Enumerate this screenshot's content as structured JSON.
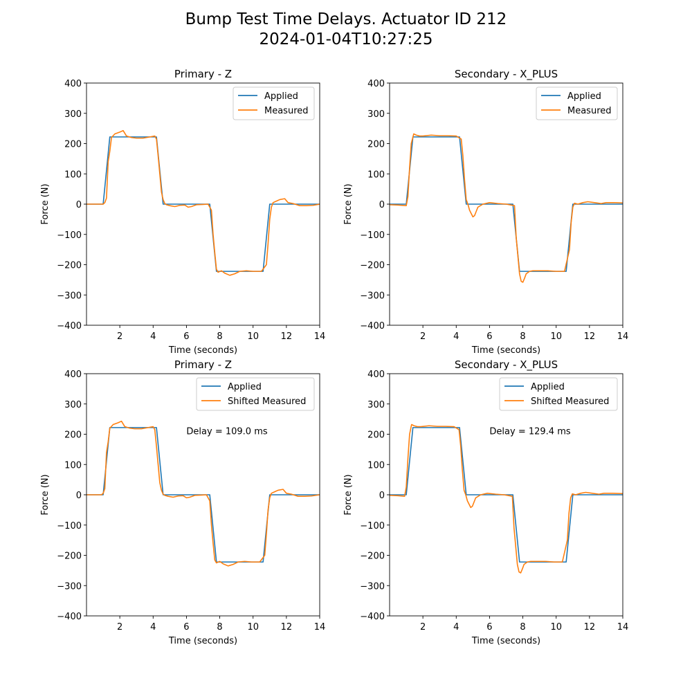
{
  "figure": {
    "title_line1": "Bump Test Time Delays. Actuator ID 212",
    "title_line2": "2024-01-04T10:27:25"
  },
  "colors": {
    "applied": "#1f77b4",
    "measured": "#ff7f0e"
  },
  "chart_data": [
    {
      "type": "line",
      "title": "Primary - Z",
      "xlabel": "Time (seconds)",
      "ylabel": "Force (N)",
      "xlim": [
        0,
        14
      ],
      "ylim": [
        -400,
        400
      ],
      "xticks": [
        2,
        4,
        6,
        8,
        10,
        12,
        14
      ],
      "yticks": [
        -400,
        -300,
        -200,
        -100,
        0,
        100,
        200,
        300,
        400
      ],
      "legend": "top-right",
      "annotation": "",
      "series": [
        {
          "name": "Applied",
          "x": [
            0,
            1.0,
            1.4,
            4.2,
            4.6,
            7.4,
            7.8,
            10.6,
            11.0,
            14
          ],
          "y": [
            0,
            0,
            222,
            222,
            0,
            0,
            -222,
            -222,
            0,
            0
          ]
        },
        {
          "name": "Measured",
          "x": [
            0,
            0.5,
            1.0,
            1.1,
            1.2,
            1.3,
            1.4,
            1.5,
            1.7,
            2.0,
            2.2,
            2.4,
            2.7,
            3.0,
            3.4,
            3.8,
            4.1,
            4.2,
            4.3,
            4.4,
            4.5,
            4.6,
            4.7,
            4.8,
            5.0,
            5.3,
            5.6,
            5.9,
            6.1,
            6.3,
            6.6,
            7.0,
            7.3,
            7.5,
            7.6,
            7.7,
            7.8,
            7.9,
            8.1,
            8.3,
            8.6,
            8.9,
            9.2,
            9.6,
            10.0,
            10.5,
            10.8,
            10.9,
            11.0,
            11.1,
            11.2,
            11.4,
            11.6,
            11.9,
            12.1,
            12.4,
            12.8,
            13.2,
            13.6,
            14
          ],
          "y": [
            0,
            0,
            0,
            5,
            20,
            140,
            175,
            220,
            232,
            238,
            243,
            225,
            220,
            218,
            218,
            222,
            225,
            215,
            160,
            100,
            40,
            15,
            2,
            -2,
            -5,
            -8,
            -4,
            -3,
            -10,
            -8,
            -2,
            -1,
            0,
            -20,
            -100,
            -160,
            -215,
            -225,
            -220,
            -228,
            -235,
            -230,
            -222,
            -220,
            -222,
            -222,
            -200,
            -130,
            -50,
            -10,
            5,
            10,
            15,
            18,
            5,
            2,
            -5,
            -5,
            -4,
            0
          ]
        }
      ]
    },
    {
      "type": "line",
      "title": "Secondary - X_PLUS",
      "xlabel": "Time (seconds)",
      "ylabel": "Force (N)",
      "xlim": [
        0,
        14
      ],
      "ylim": [
        -400,
        400
      ],
      "xticks": [
        2,
        4,
        6,
        8,
        10,
        12,
        14
      ],
      "yticks": [
        -400,
        -300,
        -200,
        -100,
        0,
        100,
        200,
        300,
        400
      ],
      "legend": "top-right",
      "annotation": "",
      "series": [
        {
          "name": "Applied",
          "x": [
            0,
            1.0,
            1.4,
            4.2,
            4.6,
            7.4,
            7.8,
            10.6,
            11.0,
            14
          ],
          "y": [
            0,
            0,
            222,
            222,
            0,
            0,
            -222,
            -222,
            0,
            0
          ]
        },
        {
          "name": "Measured",
          "x": [
            0,
            0.5,
            1.0,
            1.1,
            1.2,
            1.3,
            1.45,
            1.6,
            1.8,
            2.0,
            2.5,
            3.0,
            3.5,
            4.0,
            4.3,
            4.4,
            4.5,
            4.6,
            4.7,
            4.8,
            5.0,
            5.1,
            5.3,
            5.6,
            6.0,
            6.5,
            7.0,
            7.5,
            7.6,
            7.7,
            7.8,
            7.9,
            8.0,
            8.1,
            8.2,
            8.4,
            8.6,
            9.0,
            9.5,
            10.0,
            10.5,
            10.8,
            10.9,
            11.0,
            11.1,
            11.3,
            11.6,
            11.9,
            12.3,
            12.7,
            13.0,
            13.5,
            14
          ],
          "y": [
            -2,
            -3,
            -5,
            25,
            120,
            200,
            232,
            228,
            225,
            225,
            228,
            226,
            226,
            225,
            215,
            160,
            80,
            15,
            0,
            -20,
            -42,
            -38,
            -10,
            0,
            5,
            2,
            0,
            -5,
            -110,
            -170,
            -230,
            -255,
            -258,
            -245,
            -230,
            -222,
            -220,
            -220,
            -220,
            -222,
            -222,
            -150,
            -60,
            -10,
            3,
            0,
            5,
            8,
            5,
            2,
            5,
            5,
            4
          ]
        }
      ]
    },
    {
      "type": "line",
      "title": "Primary - Z",
      "xlabel": "Time (seconds)",
      "ylabel": "Force (N)",
      "xlim": [
        0,
        14
      ],
      "ylim": [
        -400,
        400
      ],
      "xticks": [
        2,
        4,
        6,
        8,
        10,
        12,
        14
      ],
      "yticks": [
        -400,
        -300,
        -200,
        -100,
        0,
        100,
        200,
        300,
        400
      ],
      "legend": "top-right",
      "annotation": "Delay = 109.0 ms",
      "series": [
        {
          "name": "Applied",
          "x": [
            0,
            1.0,
            1.4,
            4.2,
            4.6,
            7.4,
            7.8,
            10.6,
            11.0,
            14
          ],
          "y": [
            0,
            0,
            222,
            222,
            0,
            0,
            -222,
            -222,
            0,
            0
          ]
        },
        {
          "name": "Shifted Measured",
          "x": [
            0,
            0.5,
            0.9,
            1.0,
            1.1,
            1.2,
            1.3,
            1.4,
            1.6,
            1.9,
            2.1,
            2.3,
            2.6,
            2.9,
            3.3,
            3.7,
            4.0,
            4.1,
            4.2,
            4.3,
            4.4,
            4.5,
            4.6,
            4.7,
            4.9,
            5.2,
            5.5,
            5.8,
            6.0,
            6.2,
            6.5,
            6.9,
            7.2,
            7.4,
            7.5,
            7.6,
            7.7,
            7.8,
            8.0,
            8.2,
            8.5,
            8.8,
            9.1,
            9.5,
            9.9,
            10.4,
            10.7,
            10.8,
            10.9,
            11.0,
            11.1,
            11.3,
            11.5,
            11.8,
            12.0,
            12.3,
            12.7,
            13.1,
            13.5,
            14
          ],
          "y": [
            0,
            0,
            0,
            5,
            20,
            140,
            175,
            220,
            232,
            238,
            243,
            225,
            220,
            218,
            218,
            222,
            225,
            215,
            160,
            100,
            40,
            15,
            2,
            -2,
            -5,
            -8,
            -4,
            -3,
            -10,
            -8,
            -2,
            -1,
            0,
            -20,
            -100,
            -160,
            -215,
            -225,
            -220,
            -228,
            -235,
            -230,
            -222,
            -220,
            -222,
            -222,
            -200,
            -130,
            -50,
            -10,
            5,
            10,
            15,
            18,
            5,
            2,
            -5,
            -5,
            -4,
            0
          ]
        }
      ]
    },
    {
      "type": "line",
      "title": "Secondary - X_PLUS",
      "xlabel": "Time (seconds)",
      "ylabel": "Force (N)",
      "xlim": [
        0,
        14
      ],
      "ylim": [
        -400,
        400
      ],
      "xticks": [
        2,
        4,
        6,
        8,
        10,
        12,
        14
      ],
      "yticks": [
        -400,
        -300,
        -200,
        -100,
        0,
        100,
        200,
        300,
        400
      ],
      "legend": "top-right",
      "annotation": "Delay = 129.4 ms",
      "series": [
        {
          "name": "Applied",
          "x": [
            0,
            1.0,
            1.4,
            4.2,
            4.6,
            7.4,
            7.8,
            10.6,
            11.0,
            14
          ],
          "y": [
            0,
            0,
            222,
            222,
            0,
            0,
            -222,
            -222,
            0,
            0
          ]
        },
        {
          "name": "Shifted Measured",
          "x": [
            0,
            0.5,
            0.9,
            1.0,
            1.1,
            1.2,
            1.32,
            1.47,
            1.67,
            1.87,
            2.37,
            2.87,
            3.37,
            3.87,
            4.17,
            4.27,
            4.37,
            4.47,
            4.57,
            4.67,
            4.87,
            4.97,
            5.17,
            5.47,
            5.87,
            6.37,
            6.87,
            7.37,
            7.47,
            7.57,
            7.67,
            7.77,
            7.87,
            7.97,
            8.07,
            8.27,
            8.47,
            8.87,
            9.37,
            9.87,
            10.37,
            10.67,
            10.77,
            10.87,
            10.97,
            11.17,
            11.47,
            11.77,
            12.17,
            12.57,
            12.87,
            13.37,
            14
          ],
          "y": [
            -2,
            -3,
            -5,
            25,
            120,
            200,
            232,
            228,
            225,
            225,
            228,
            226,
            226,
            225,
            215,
            160,
            80,
            15,
            0,
            -20,
            -42,
            -38,
            -10,
            0,
            5,
            2,
            0,
            -5,
            -110,
            -170,
            -230,
            -255,
            -258,
            -245,
            -230,
            -222,
            -220,
            -220,
            -220,
            -222,
            -222,
            -150,
            -60,
            -10,
            3,
            0,
            5,
            8,
            5,
            2,
            5,
            5,
            4
          ]
        }
      ]
    }
  ]
}
